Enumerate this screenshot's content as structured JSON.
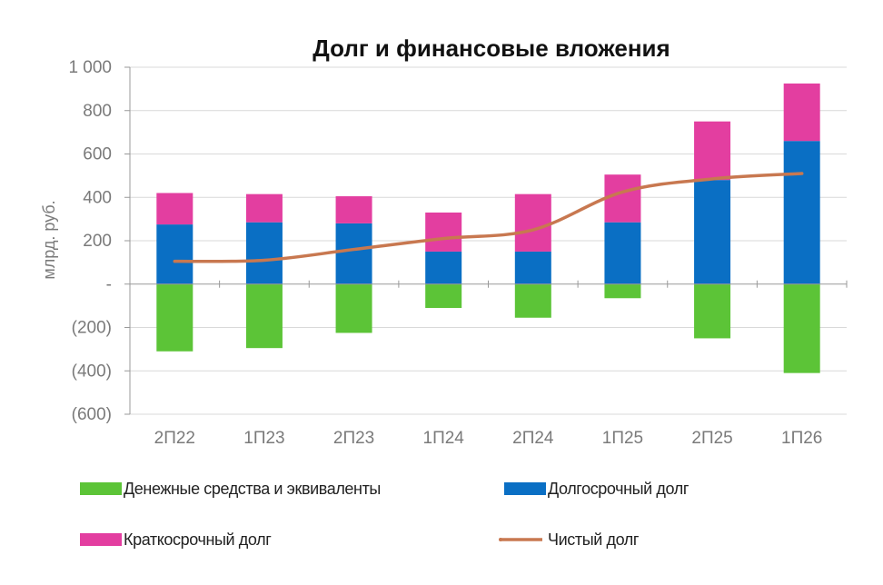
{
  "chart_data": {
    "type": "bar",
    "title": "Долг и финансовые  вложения",
    "ylabel": "млрд. руб.",
    "xlabel": "",
    "categories": [
      "2П22",
      "1П23",
      "2П23",
      "1П24",
      "2П24",
      "1П25",
      "2П25",
      "1П26"
    ],
    "ylim": [
      -600,
      1000
    ],
    "yticks": [
      1000,
      800,
      600,
      400,
      200,
      0,
      -200,
      -400,
      -600
    ],
    "ytick_labels": [
      "1 000",
      "800",
      "600",
      "400",
      "200",
      "-",
      "(200)",
      "(400)",
      "(600)"
    ],
    "grid": true,
    "stacked": true,
    "legend_position": "bottom",
    "series": [
      {
        "name": "Денежные средства и эквиваленты",
        "kind": "bar",
        "color": "#5cc437",
        "values": [
          -310,
          -295,
          -225,
          -110,
          -155,
          -65,
          -250,
          -410
        ]
      },
      {
        "name": "Долгосрочный долг",
        "kind": "bar",
        "color": "#0a6fc4",
        "values": [
          275,
          285,
          280,
          150,
          150,
          285,
          480,
          660
        ]
      },
      {
        "name": "Краткосрочный долг",
        "kind": "bar",
        "color": "#e33ea0",
        "values": [
          145,
          130,
          125,
          180,
          265,
          220,
          270,
          265
        ]
      },
      {
        "name": "Чистый долг",
        "kind": "line",
        "color": "#c87850",
        "values": [
          105,
          110,
          160,
          210,
          250,
          425,
          485,
          510
        ]
      }
    ]
  }
}
